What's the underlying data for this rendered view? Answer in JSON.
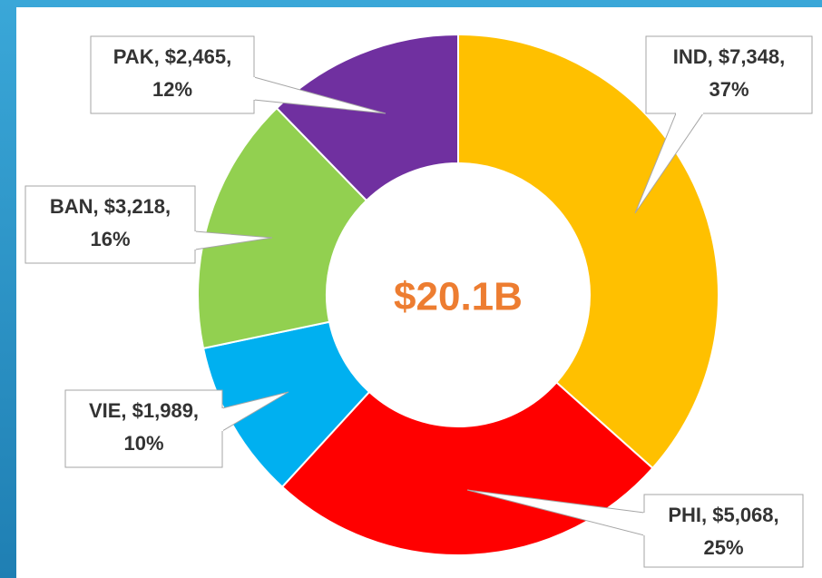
{
  "chart_data": {
    "type": "donut",
    "categories": [
      "IND",
      "PHI",
      "VIE",
      "BAN",
      "PAK"
    ],
    "values": [
      7348,
      5068,
      1989,
      3218,
      2465
    ],
    "value_labels": [
      [
        "IND, $7,348,",
        "37%"
      ],
      [
        "PHI, $5,068,",
        "25%"
      ],
      [
        "VIE, $1,989,",
        "10%"
      ],
      [
        "BAN, $3,218,",
        "16%"
      ],
      [
        "PAK, $2,465,",
        "12%"
      ]
    ],
    "colors": [
      "#ffc000",
      "#ff0000",
      "#00b0f0",
      "#92d050",
      "#7030a0"
    ],
    "center_label": "$20.1B"
  }
}
